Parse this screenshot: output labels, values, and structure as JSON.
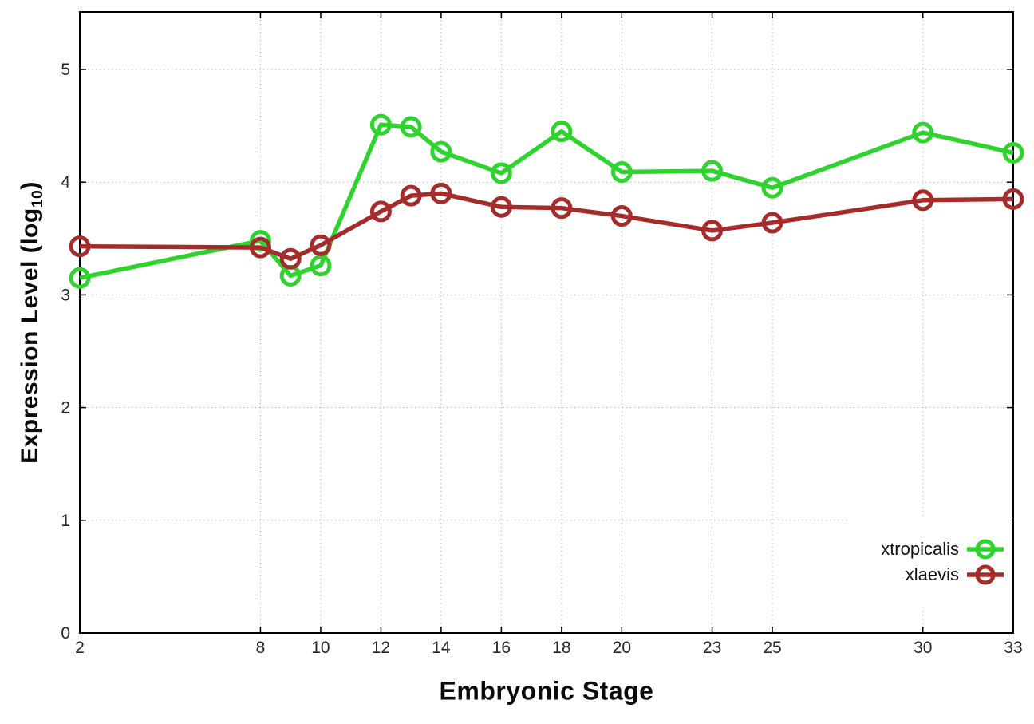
{
  "chart_data": {
    "type": "line",
    "title": "",
    "xlabel": "Embryonic Stage",
    "ylabel": "Expression Level (log10)",
    "ylabel_parts": {
      "prefix": "Expression Level (log",
      "sub": "10",
      "suffix": ")"
    },
    "x": [
      2,
      8,
      9,
      10,
      12,
      13,
      14,
      16,
      18,
      20,
      23,
      25,
      30,
      33
    ],
    "x_ticks": [
      2,
      8,
      10,
      12,
      14,
      16,
      18,
      20,
      23,
      25,
      30,
      33
    ],
    "y_ticks": [
      0,
      1,
      2,
      3,
      4,
      5
    ],
    "xlim": [
      2,
      33
    ],
    "ylim": [
      0,
      5.51
    ],
    "grid": true,
    "grid_style": "dotted",
    "marker": "open-circle",
    "legend_position": "bottom-right-inside",
    "series": [
      {
        "name": "xtropicalis",
        "color": "#2ED32E",
        "values": [
          3.15,
          3.48,
          3.17,
          3.26,
          4.51,
          4.49,
          4.27,
          4.08,
          4.45,
          4.09,
          4.1,
          3.95,
          4.44,
          4.26
        ]
      },
      {
        "name": "xlaevis",
        "color": "#A62B2B",
        "values": [
          3.43,
          3.42,
          3.32,
          3.44,
          3.74,
          3.88,
          3.9,
          3.78,
          3.77,
          3.7,
          3.57,
          3.64,
          3.84,
          3.85
        ]
      }
    ],
    "colors": {
      "grid": "#B8B8B8",
      "frame": "#000000",
      "tick_text": "#262626"
    }
  }
}
